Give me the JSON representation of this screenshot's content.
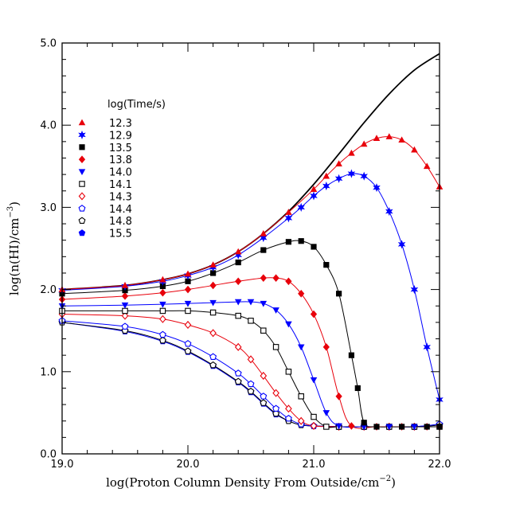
{
  "chart_data": {
    "type": "line",
    "xlabel_main": "log(Proton Column Density From Outside/cm",
    "xlabel_sup": "−2",
    "xlabel_end": ")",
    "ylabel_main": "log(n(HI)/cm",
    "ylabel_sup": "−3",
    "ylabel_end": ")",
    "xlim": [
      19.0,
      22.0
    ],
    "ylim": [
      0.0,
      5.0
    ],
    "xticks": [
      "19.0",
      "20.0",
      "21.0",
      "22.0"
    ],
    "yticks": [
      "0.0",
      "1.0",
      "2.0",
      "3.0",
      "4.0",
      "5.0"
    ],
    "x_tick_values": [
      19.0,
      20.0,
      21.0,
      22.0
    ],
    "y_tick_values": [
      0.0,
      1.0,
      2.0,
      3.0,
      4.0,
      5.0
    ],
    "legend_title": "log(Time/s)",
    "legend_position": "upper-left",
    "equilibrium_curve": {
      "color": "#000000",
      "x": [
        19.0,
        19.5,
        19.8,
        20.0,
        20.2,
        20.4,
        20.6,
        20.8,
        21.0,
        21.2,
        21.4,
        21.6,
        21.8,
        22.0
      ],
      "y": [
        2.0,
        2.05,
        2.12,
        2.19,
        2.3,
        2.46,
        2.68,
        2.95,
        3.28,
        3.65,
        4.03,
        4.38,
        4.67,
        4.87
      ]
    },
    "series": [
      {
        "name": "12.3",
        "color": "#e8000b",
        "marker": "triangle",
        "filled": true,
        "x": [
          19.0,
          19.5,
          19.8,
          20.0,
          20.2,
          20.4,
          20.6,
          20.8,
          21.0,
          21.1,
          21.2,
          21.3,
          21.4,
          21.5,
          21.6,
          21.7,
          21.8,
          21.9,
          22.0
        ],
        "y": [
          2.0,
          2.05,
          2.12,
          2.19,
          2.3,
          2.46,
          2.68,
          2.94,
          3.22,
          3.38,
          3.53,
          3.66,
          3.77,
          3.84,
          3.86,
          3.82,
          3.7,
          3.5,
          3.25
        ]
      },
      {
        "name": "12.9",
        "color": "#0000ff",
        "marker": "star",
        "filled": true,
        "x": [
          19.0,
          19.5,
          19.8,
          20.0,
          20.2,
          20.4,
          20.6,
          20.8,
          20.9,
          21.0,
          21.1,
          21.2,
          21.3,
          21.4,
          21.5,
          21.6,
          21.7,
          21.8,
          21.9,
          22.0
        ],
        "y": [
          1.99,
          2.04,
          2.1,
          2.17,
          2.27,
          2.42,
          2.63,
          2.87,
          3.0,
          3.14,
          3.26,
          3.35,
          3.41,
          3.38,
          3.24,
          2.95,
          2.55,
          2.0,
          1.3,
          0.66
        ]
      },
      {
        "name": "13.5",
        "color": "#000000",
        "marker": "square",
        "filled": true,
        "x": [
          19.0,
          19.5,
          19.8,
          20.0,
          20.2,
          20.4,
          20.6,
          20.8,
          20.9,
          21.0,
          21.1,
          21.2,
          21.3,
          21.35,
          21.4,
          21.5,
          21.7,
          21.9,
          22.0
        ],
        "y": [
          1.95,
          1.99,
          2.04,
          2.1,
          2.2,
          2.33,
          2.48,
          2.58,
          2.59,
          2.52,
          2.3,
          1.95,
          1.2,
          0.8,
          0.38,
          0.33,
          0.33,
          0.33,
          0.33
        ]
      },
      {
        "name": "13.8",
        "color": "#e8000b",
        "marker": "diamond",
        "filled": true,
        "x": [
          19.0,
          19.5,
          19.8,
          20.0,
          20.2,
          20.4,
          20.6,
          20.7,
          20.8,
          20.9,
          21.0,
          21.1,
          21.2,
          21.3,
          21.5,
          21.7,
          21.9,
          22.0
        ],
        "y": [
          1.88,
          1.92,
          1.96,
          2.0,
          2.05,
          2.1,
          2.14,
          2.14,
          2.1,
          1.95,
          1.7,
          1.3,
          0.7,
          0.34,
          0.33,
          0.33,
          0.33,
          0.33
        ]
      },
      {
        "name": "14.0",
        "color": "#0000ff",
        "marker": "triangle-down",
        "filled": true,
        "x": [
          19.0,
          19.5,
          19.8,
          20.0,
          20.2,
          20.4,
          20.5,
          20.6,
          20.7,
          20.8,
          20.9,
          21.0,
          21.1,
          21.2,
          21.4,
          21.6,
          21.8,
          22.0
        ],
        "y": [
          1.8,
          1.81,
          1.82,
          1.83,
          1.84,
          1.85,
          1.85,
          1.83,
          1.75,
          1.58,
          1.3,
          0.9,
          0.5,
          0.34,
          0.33,
          0.33,
          0.33,
          0.33
        ]
      },
      {
        "name": "14.1",
        "color": "#000000",
        "marker": "square",
        "filled": false,
        "x": [
          19.0,
          19.5,
          19.8,
          20.0,
          20.2,
          20.4,
          20.5,
          20.6,
          20.7,
          20.8,
          20.9,
          21.0,
          21.1,
          21.2,
          21.4,
          21.6,
          21.8,
          22.0
        ],
        "y": [
          1.74,
          1.74,
          1.74,
          1.74,
          1.72,
          1.68,
          1.62,
          1.5,
          1.3,
          1.0,
          0.7,
          0.45,
          0.33,
          0.33,
          0.33,
          0.33,
          0.33,
          0.33
        ]
      },
      {
        "name": "14.3",
        "color": "#e8000b",
        "marker": "diamond",
        "filled": false,
        "x": [
          19.0,
          19.5,
          19.8,
          20.0,
          20.2,
          20.4,
          20.5,
          20.6,
          20.7,
          20.8,
          20.9,
          21.0,
          21.2,
          21.4,
          21.6,
          21.8,
          22.0
        ],
        "y": [
          1.7,
          1.68,
          1.64,
          1.57,
          1.47,
          1.3,
          1.15,
          0.95,
          0.74,
          0.55,
          0.4,
          0.34,
          0.33,
          0.33,
          0.33,
          0.33,
          0.33
        ]
      },
      {
        "name": "14.4",
        "color": "#0000ff",
        "marker": "pentagon",
        "filled": false,
        "x": [
          19.0,
          19.5,
          19.8,
          20.0,
          20.2,
          20.4,
          20.5,
          20.6,
          20.7,
          20.8,
          20.9,
          21.0,
          21.2,
          21.4,
          21.6,
          21.8,
          22.0
        ],
        "y": [
          1.62,
          1.55,
          1.45,
          1.34,
          1.18,
          0.98,
          0.85,
          0.7,
          0.55,
          0.43,
          0.36,
          0.34,
          0.33,
          0.33,
          0.33,
          0.33,
          0.36
        ]
      },
      {
        "name": "14.8",
        "color": "#000000",
        "marker": "pentagon",
        "filled": false,
        "x": [
          19.0,
          19.5,
          19.8,
          20.0,
          20.2,
          20.4,
          20.5,
          20.6,
          20.7,
          20.8,
          20.9,
          21.0,
          21.2,
          21.4,
          21.6,
          21.8,
          22.0
        ],
        "y": [
          1.6,
          1.5,
          1.38,
          1.25,
          1.08,
          0.88,
          0.76,
          0.62,
          0.49,
          0.4,
          0.35,
          0.34,
          0.33,
          0.33,
          0.33,
          0.33,
          0.35
        ]
      },
      {
        "name": "15.5",
        "color": "#0000ff",
        "marker": "pentagon",
        "filled": true,
        "x": [
          19.0,
          19.5,
          19.8,
          20.0,
          20.2,
          20.4,
          20.5,
          20.6,
          20.7,
          20.8,
          20.9,
          21.0,
          21.2,
          21.4,
          21.6,
          21.8,
          22.0
        ],
        "y": [
          1.6,
          1.49,
          1.37,
          1.24,
          1.07,
          0.87,
          0.75,
          0.61,
          0.48,
          0.4,
          0.35,
          0.34,
          0.33,
          0.33,
          0.33,
          0.33,
          0.36
        ]
      }
    ]
  }
}
